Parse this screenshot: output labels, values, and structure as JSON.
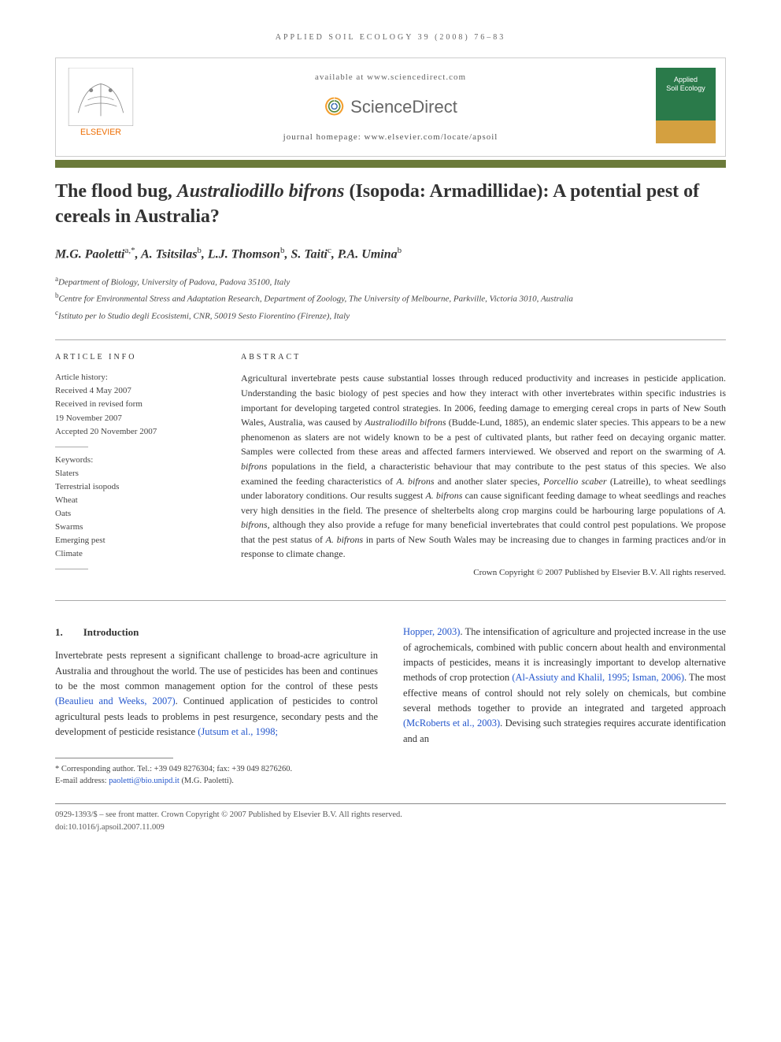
{
  "running_head": "APPLIED SOIL ECOLOGY 39 (2008) 76–83",
  "header": {
    "available": "available at www.sciencedirect.com",
    "sd_brand": "ScienceDirect",
    "homepage_label": "journal homepage: www.elsevier.com/locate/apsoil",
    "publisher": "ELSEVIER",
    "journal_cover_line1": "Applied",
    "journal_cover_line2": "Soil Ecology"
  },
  "title": {
    "pre": "The flood bug, ",
    "species": "Australiodillo bifrons",
    "post": " (Isopoda: Armadillidae): A potential pest of cereals in Australia?"
  },
  "authors_html": "M.G. Paoletti<sup>a,*</sup>, A. Tsitsilas<sup>b</sup>, L.J. Thomson<sup>b</sup>, S. Taiti<sup>c</sup>, P.A. Umina<sup>b</sup>",
  "affiliations": {
    "a": "Department of Biology, University of Padova, Padova 35100, Italy",
    "b": "Centre for Environmental Stress and Adaptation Research, Department of Zoology, The University of Melbourne, Parkville, Victoria 3010, Australia",
    "c": "Istituto per lo Studio degli Ecosistemi, CNR, 50019 Sesto Fiorentino (Firenze), Italy"
  },
  "article_info": {
    "head": "ARTICLE INFO",
    "history_label": "Article history:",
    "received": "Received 4 May 2007",
    "revised1": "Received in revised form",
    "revised2": "19 November 2007",
    "accepted": "Accepted 20 November 2007",
    "keywords_label": "Keywords:",
    "keywords": [
      "Slaters",
      "Terrestrial isopods",
      "Wheat",
      "Oats",
      "Swarms",
      "Emerging pest",
      "Climate"
    ]
  },
  "abstract": {
    "head": "ABSTRACT",
    "text": "Agricultural invertebrate pests cause substantial losses through reduced productivity and increases in pesticide application. Understanding the basic biology of pest species and how they interact with other invertebrates within specific industries is important for developing targeted control strategies. In 2006, feeding damage to emerging cereal crops in parts of New South Wales, Australia, was caused by Australiodillo bifrons (Budde-Lund, 1885), an endemic slater species. This appears to be a new phenomenon as slaters are not widely known to be a pest of cultivated plants, but rather feed on decaying organic matter. Samples were collected from these areas and affected farmers interviewed. We observed and report on the swarming of A. bifrons populations in the field, a characteristic behaviour that may contribute to the pest status of this species. We also examined the feeding characteristics of A. bifrons and another slater species, Porcellio scaber (Latreille), to wheat seedlings under laboratory conditions. Our results suggest A. bifrons can cause significant feeding damage to wheat seedlings and reaches very high densities in the field. The presence of shelterbelts along crop margins could be harbouring large populations of A. bifrons, although they also provide a refuge for many beneficial invertebrates that could control pest populations. We propose that the pest status of A. bifrons in parts of New South Wales may be increasing due to changes in farming practices and/or in response to climate change.",
    "copyright": "Crown Copyright © 2007 Published by Elsevier B.V. All rights reserved."
  },
  "body": {
    "section_num": "1.",
    "section_title": "Introduction",
    "col1": "Invertebrate pests represent a significant challenge to broad-acre agriculture in Australia and throughout the world. The use of pesticides has been and continues to be the most common management option for the control of these pests (Beaulieu and Weeks, 2007). Continued application of pesticides to control agricultural pests leads to problems in pest resurgence, secondary pests and the development of pesticide resistance (Jutsum et al., 1998;",
    "col2": "Hopper, 2003). The intensification of agriculture and projected increase in the use of agrochemicals, combined with public concern about health and environmental impacts of pesticides, means it is increasingly important to develop alternative methods of crop protection (Al-Assiuty and Khalil, 1995; Isman, 2006). The most effective means of control should not rely solely on chemicals, but combine several methods together to provide an integrated and targeted approach (McRoberts et al., 2003). Devising such strategies requires accurate identification and an",
    "refs_col1": [
      "(Beaulieu and Weeks, 2007)",
      "(Jutsum et al., 1998;"
    ],
    "refs_col2": [
      "Hopper, 2003)",
      "(Al-Assiuty and Khalil, 1995; Isman, 2006)",
      "(McRoberts et al., 2003)"
    ]
  },
  "footnotes": {
    "corr": "* Corresponding author. Tel.: +39 049 8276304; fax: +39 049 8276260.",
    "email_label": "E-mail address: ",
    "email": "paoletti@bio.unipd.it",
    "email_tail": " (M.G. Paoletti)."
  },
  "bottom": {
    "line1": "0929-1393/$ – see front matter. Crown Copyright © 2007 Published by Elsevier B.V. All rights reserved.",
    "line2": "doi:10.1016/j.apsoil.2007.11.009"
  },
  "colors": {
    "title_bar": "#6b7a3a",
    "link": "#2255cc",
    "journal_green": "#2a7a4a",
    "journal_gold": "#d4a040",
    "elsevier_orange": "#ed6c00"
  }
}
